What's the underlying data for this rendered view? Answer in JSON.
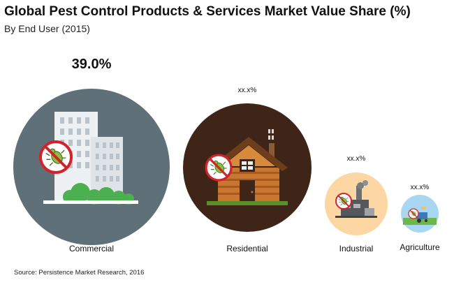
{
  "chart_data": {
    "type": "bubble",
    "title": "Global Pest Control Products & Services Market Value Share (%)",
    "subtitle": "By End User (2015)",
    "categories": [
      "Commercial",
      "Residential",
      "Industrial",
      "Agriculture"
    ],
    "value_labels": [
      "39.0%",
      "xx.x%",
      "xx.x%",
      "xx.x%"
    ],
    "values": [
      39.0,
      null,
      null,
      null
    ],
    "colors": [
      "#5f7079",
      "#3e2517",
      "#fcd7a4",
      "#a9d6f3"
    ]
  },
  "source": "Source: Persistence Market Research, 2016",
  "icons": [
    "office-building-icon",
    "house-icon",
    "factory-icon",
    "farm-icon",
    "no-bug-icon"
  ]
}
